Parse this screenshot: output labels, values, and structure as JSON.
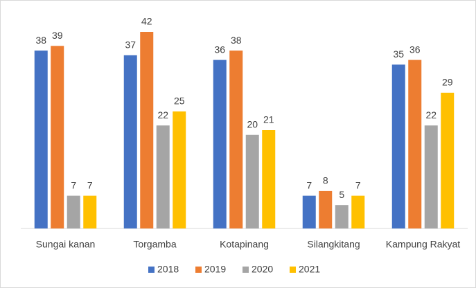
{
  "chart_data": {
    "type": "bar",
    "categories": [
      "Sungai kanan",
      "Torgamba",
      "Kotapinang",
      "Silangkitang",
      "Kampung Rakyat"
    ],
    "series": [
      {
        "name": "2018",
        "color": "#4472c4",
        "values": [
          38,
          37,
          36,
          7,
          35
        ]
      },
      {
        "name": "2019",
        "color": "#ed7d31",
        "values": [
          39,
          42,
          38,
          8,
          36
        ]
      },
      {
        "name": "2020",
        "color": "#a5a5a5",
        "values": [
          7,
          22,
          20,
          5,
          22
        ]
      },
      {
        "name": "2021",
        "color": "#ffc000",
        "values": [
          7,
          25,
          21,
          7,
          29
        ]
      }
    ],
    "legend": "bottom"
  }
}
